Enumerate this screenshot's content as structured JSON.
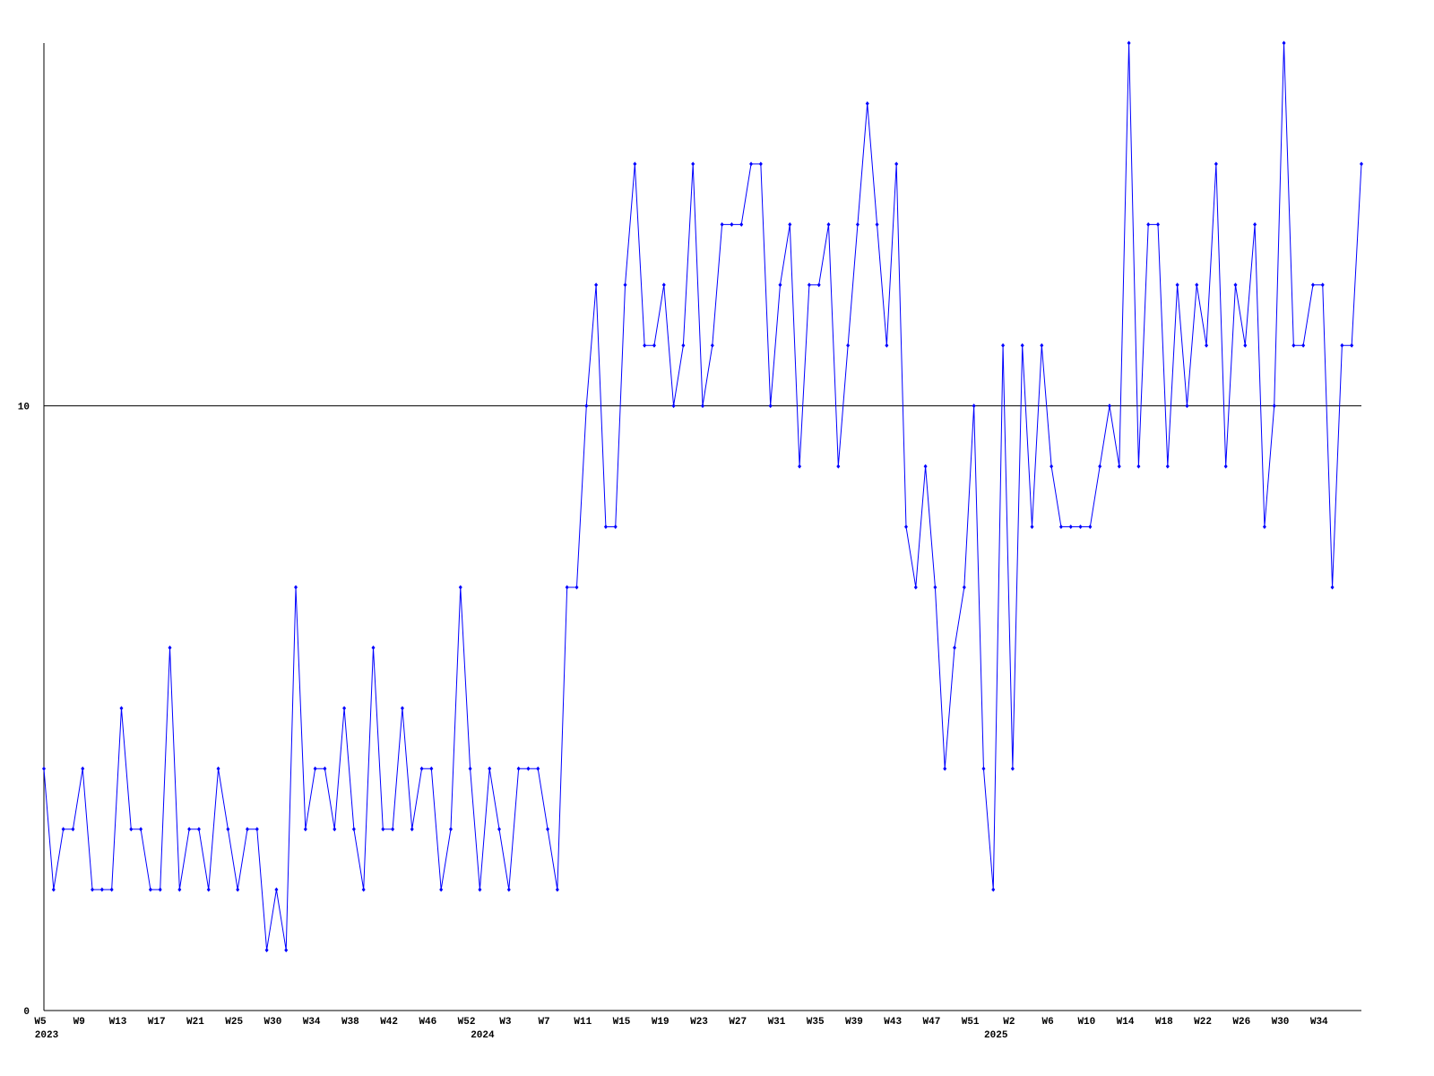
{
  "chart_data": {
    "type": "line",
    "categories": [
      "W5",
      null,
      null,
      null,
      "W9",
      null,
      null,
      null,
      "W13",
      null,
      null,
      null,
      "W17",
      null,
      null,
      null,
      "W21",
      null,
      null,
      null,
      "W25",
      null,
      null,
      null,
      "W30",
      null,
      null,
      null,
      "W34",
      null,
      null,
      null,
      "W38",
      null,
      null,
      null,
      "W42",
      null,
      null,
      null,
      "W46",
      null,
      null,
      null,
      "W52",
      null,
      null,
      null,
      "W3",
      null,
      null,
      null,
      "W7",
      null,
      null,
      null,
      "W11",
      null,
      null,
      null,
      "W15",
      null,
      null,
      null,
      "W19",
      null,
      null,
      null,
      "W23",
      null,
      null,
      null,
      "W27",
      null,
      null,
      null,
      "W31",
      null,
      null,
      null,
      "W35",
      null,
      null,
      null,
      "W39",
      null,
      null,
      null,
      "W43",
      null,
      null,
      null,
      "W47",
      null,
      null,
      null,
      "W51",
      null,
      null,
      null,
      "W2",
      null,
      null,
      null,
      "W6",
      null,
      null,
      null,
      "W10",
      null,
      null,
      null,
      "W14",
      null,
      null,
      null,
      "W18",
      null,
      null,
      null,
      "W22",
      null,
      null,
      null,
      "W26",
      null,
      null,
      null,
      "W30",
      null,
      null,
      null,
      "W34",
      null,
      null,
      null,
      null
    ],
    "year_labels": [
      "2023",
      "2024",
      "2025"
    ],
    "values": [
      4,
      2,
      3,
      3,
      4,
      2,
      2,
      2,
      5,
      3,
      3,
      2,
      2,
      6,
      2,
      3,
      3,
      2,
      4,
      3,
      2,
      3,
      3,
      1,
      2,
      1,
      7,
      3,
      4,
      4,
      3,
      5,
      3,
      2,
      6,
      3,
      3,
      5,
      3,
      4,
      4,
      2,
      3,
      7,
      4,
      2,
      4,
      3,
      2,
      4,
      4,
      4,
      3,
      2,
      7,
      7,
      10,
      12,
      8,
      8,
      12,
      14,
      11,
      11,
      12,
      10,
      11,
      14,
      10,
      11,
      13,
      13,
      13,
      14,
      14,
      10,
      12,
      13,
      9,
      12,
      12,
      13,
      9,
      11,
      13,
      15,
      13,
      11,
      14,
      8,
      7,
      9,
      7,
      4,
      6,
      7,
      10,
      4,
      2,
      11,
      4,
      11,
      8,
      11,
      9,
      8,
      8,
      8,
      8,
      9,
      10,
      9,
      16,
      9,
      13,
      13,
      9,
      12,
      10,
      12,
      11,
      14,
      9,
      12,
      11,
      13,
      8,
      10,
      16,
      11,
      11,
      12,
      12,
      7,
      11,
      11,
      14
    ],
    "color": "#0000ff",
    "ylim": [
      0,
      16
    ],
    "yticks": [
      0,
      10
    ],
    "grid": true
  }
}
